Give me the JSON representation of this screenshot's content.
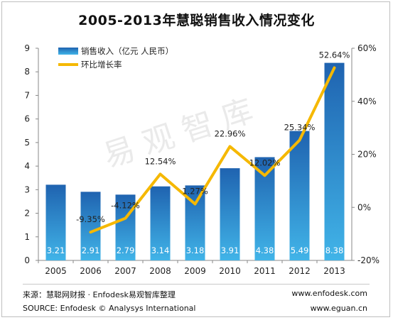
{
  "chart_data": {
    "type": "bar+line",
    "title": "2005-2013年慧聪销售收入情况变化",
    "categories": [
      "2005",
      "2006",
      "2007",
      "2008",
      "2009",
      "2010",
      "2011",
      "2012",
      "2013"
    ],
    "series": [
      {
        "name": "销售收入（亿元  人民币）",
        "type": "bar",
        "axis": "left",
        "values": [
          3.21,
          2.91,
          2.79,
          3.14,
          3.18,
          3.91,
          4.38,
          5.49,
          8.38
        ],
        "labels": [
          "3.21",
          "2.91",
          "2.79",
          "3.14",
          "3.18",
          "3.91",
          "4.38",
          "5.49",
          "8.38"
        ]
      },
      {
        "name": "环比增长率",
        "type": "line",
        "axis": "right",
        "values": [
          null,
          -9.35,
          -4.12,
          12.54,
          1.27,
          22.96,
          12.02,
          25.34,
          52.64
        ],
        "labels": [
          "",
          "-9.35%",
          "-4.12%",
          "12.54%",
          "1.27%",
          "22.96%",
          "12.02%",
          "25.34%",
          "52.64%"
        ]
      }
    ],
    "y_left": {
      "range": [
        0,
        9
      ],
      "ticks": [
        "0",
        "1",
        "2",
        "3",
        "4",
        "5",
        "6",
        "7",
        "8",
        "9"
      ]
    },
    "y_right": {
      "range": [
        -20,
        60
      ],
      "ticks": [
        "-20%",
        "0%",
        "20%",
        "40%",
        "60%"
      ]
    },
    "legend_position": "top-left",
    "grid": false
  },
  "colors": {
    "bar_top": "#1f63b0",
    "bar_bottom": "#41b4e8",
    "line": "#f5b800",
    "axis": "#888888"
  },
  "watermark": "易观智库",
  "footer": {
    "source_cn": "来源：慧聪网财报 · Enfodesk易观智库整理",
    "source_en": "SOURCE: Enfodesk © Analysys International",
    "url1": "www.enfodesk.com",
    "url2": "www.eguan.cn"
  }
}
